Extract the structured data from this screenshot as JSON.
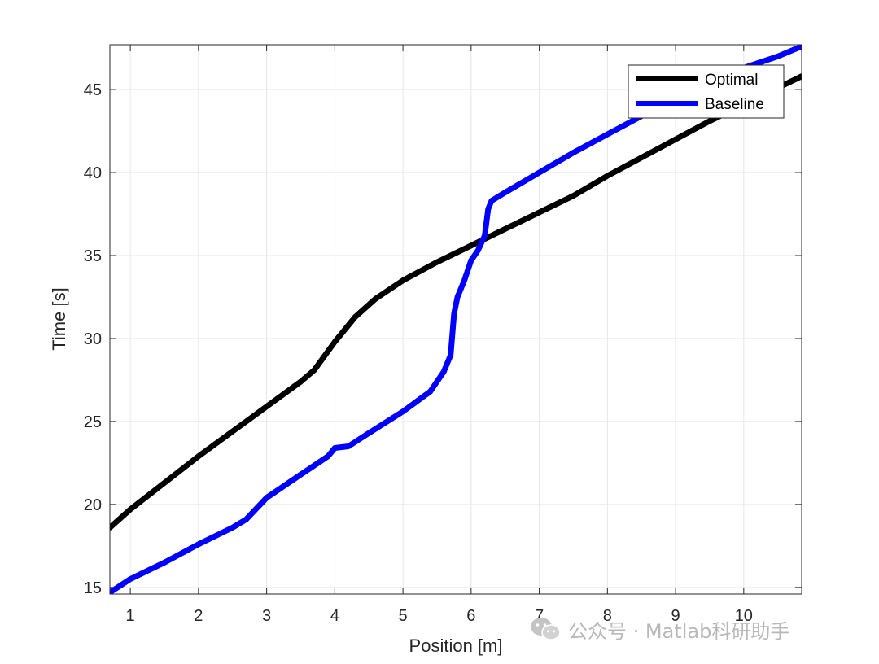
{
  "chart_data": {
    "type": "line",
    "title": "",
    "xlabel": "Position [m]",
    "ylabel": "Time [s]",
    "xlim": [
      0.7,
      10.85
    ],
    "ylim": [
      14.6,
      47.7
    ],
    "x_ticks": [
      1,
      2,
      3,
      4,
      5,
      6,
      7,
      8,
      9,
      10
    ],
    "y_ticks": [
      15,
      20,
      25,
      30,
      35,
      40,
      45
    ],
    "grid": true,
    "legend_position": "top-right",
    "series": [
      {
        "name": "Optimal",
        "color": "#000000",
        "x": [
          0.7,
          1.0,
          1.5,
          2.0,
          2.5,
          3.0,
          3.5,
          3.7,
          4.0,
          4.3,
          4.6,
          5.0,
          5.5,
          6.0,
          6.5,
          7.0,
          7.5,
          8.0,
          8.5,
          9.0,
          9.5,
          10.0,
          10.5,
          10.85
        ],
        "y": [
          18.6,
          19.7,
          21.3,
          22.9,
          24.4,
          25.9,
          27.4,
          28.1,
          29.8,
          31.3,
          32.4,
          33.5,
          34.6,
          35.6,
          36.6,
          37.6,
          38.6,
          39.8,
          40.9,
          42.0,
          43.1,
          44.1,
          45.1,
          45.8
        ]
      },
      {
        "name": "Baseline",
        "color": "#0000ff",
        "x": [
          0.7,
          1.0,
          1.5,
          2.0,
          2.5,
          2.7,
          3.0,
          3.5,
          3.9,
          4.0,
          4.2,
          4.5,
          5.0,
          5.4,
          5.6,
          5.7,
          5.75,
          5.8,
          5.9,
          6.0,
          6.1,
          6.2,
          6.25,
          6.3,
          6.5,
          7.0,
          7.5,
          8.0,
          8.5,
          9.0,
          9.5,
          10.0,
          10.5,
          10.85
        ],
        "y": [
          14.7,
          15.5,
          16.5,
          17.6,
          18.6,
          19.1,
          20.4,
          21.8,
          22.9,
          23.4,
          23.5,
          24.3,
          25.6,
          26.8,
          28.0,
          29.0,
          31.5,
          32.5,
          33.5,
          34.7,
          35.3,
          36.2,
          37.8,
          38.3,
          38.8,
          40.0,
          41.2,
          42.3,
          43.4,
          44.5,
          45.4,
          46.3,
          47.0,
          47.6
        ]
      }
    ]
  },
  "watermark": {
    "text": "公众号 · Matlab科研助手",
    "icon": "wechat-icon"
  }
}
